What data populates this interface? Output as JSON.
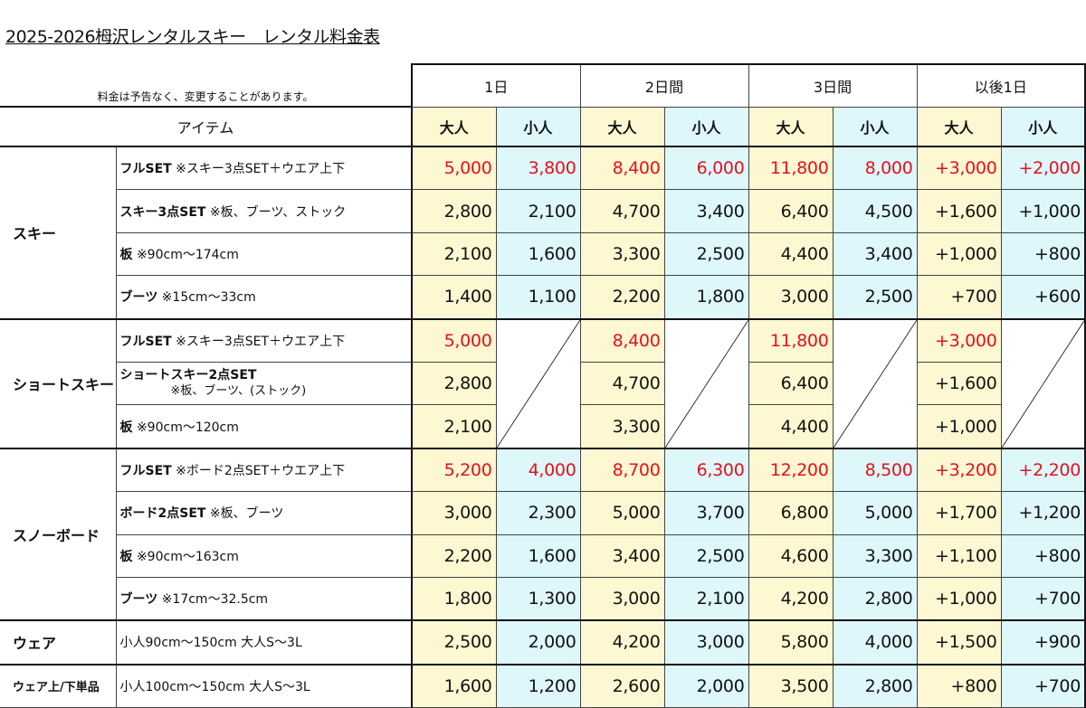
{
  "title": "2025-2026栂沢レンタルスキー　レンタル料金表",
  "note": "料金は予告なく、変更することがあります。",
  "item_header": "アイテム",
  "periods": [
    "1日",
    "2日間",
    "3日間",
    "以後1日"
  ],
  "adult_label": "大人",
  "child_label": "小人",
  "colors": {
    "adult_bg": "#fdf8d2",
    "child_bg": "#ddf7fb",
    "highlight": "#e8101a"
  },
  "groups": [
    {
      "category": "スキー",
      "rows": [
        {
          "label": "フルSET",
          "note": " ※スキー3点SET＋ウエア上下",
          "highlight": true,
          "prices": [
            "5,000",
            "3,800",
            "8,400",
            "6,000",
            "11,800",
            "8,000",
            "+3,000",
            "+2,000"
          ]
        },
        {
          "label": "スキー3点SET",
          "note": " ※板、ブーツ、ストック",
          "highlight": false,
          "prices": [
            "2,800",
            "2,100",
            "4,700",
            "3,400",
            "6,400",
            "4,500",
            "+1,600",
            "+1,000"
          ]
        },
        {
          "label": "板",
          "note": " ※90cm～174cm",
          "highlight": false,
          "prices": [
            "2,100",
            "1,600",
            "3,300",
            "2,500",
            "4,400",
            "3,400",
            "+1,000",
            "+800"
          ]
        },
        {
          "label": "ブーツ",
          "note": " ※15cm～33cm",
          "highlight": false,
          "prices": [
            "1,400",
            "1,100",
            "2,200",
            "1,800",
            "3,000",
            "2,500",
            "+700",
            "+600"
          ]
        }
      ]
    },
    {
      "category": "ショートスキー",
      "no_child": true,
      "rows": [
        {
          "label": "フルSET",
          "note": " ※スキー3点SET＋ウエア上下",
          "highlight": true,
          "prices": [
            "5,000",
            null,
            "8,400",
            null,
            "11,800",
            null,
            "+3,000",
            null
          ]
        },
        {
          "label": "ショートスキー2点SET",
          "sub": "※板、ブーツ、(ストック)",
          "highlight": false,
          "prices": [
            "2,800",
            null,
            "4,700",
            null,
            "6,400",
            null,
            "+1,600",
            null
          ]
        },
        {
          "label": "板",
          "note": " ※90cm～120cm",
          "highlight": false,
          "prices": [
            "2,100",
            null,
            "3,300",
            null,
            "4,400",
            null,
            "+1,000",
            null
          ]
        }
      ]
    },
    {
      "category": "スノーボード",
      "rows": [
        {
          "label": "フルSET",
          "note": " ※ボード2点SET＋ウエア上下",
          "highlight": true,
          "prices": [
            "5,200",
            "4,000",
            "8,700",
            "6,300",
            "12,200",
            "8,500",
            "+3,200",
            "+2,200"
          ]
        },
        {
          "label": "ボード2点SET",
          "note": " ※板、ブーツ",
          "highlight": false,
          "prices": [
            "3,000",
            "2,300",
            "5,000",
            "3,700",
            "6,800",
            "5,000",
            "+1,700",
            "+1,200"
          ]
        },
        {
          "label": "板",
          "note": " ※90cm～163cm",
          "highlight": false,
          "prices": [
            "2,200",
            "1,600",
            "3,400",
            "2,500",
            "4,600",
            "3,300",
            "+1,100",
            "+800"
          ]
        },
        {
          "label": "ブーツ",
          "note": " ※17cm～32.5cm",
          "highlight": false,
          "prices": [
            "1,800",
            "1,300",
            "3,000",
            "2,100",
            "4,200",
            "2,800",
            "+1,000",
            "+700"
          ]
        }
      ]
    },
    {
      "category": "ウェア",
      "rows": [
        {
          "label": "",
          "note": "小人90cm～150cm 大人S～3L",
          "highlight": false,
          "prices": [
            "2,500",
            "2,000",
            "4,200",
            "3,000",
            "5,800",
            "4,000",
            "+1,500",
            "+900"
          ]
        }
      ]
    },
    {
      "category": "ウェア上/下単品",
      "small": true,
      "rows": [
        {
          "label": "",
          "note": "小人100cm～150cm 大人S～3L",
          "highlight": false,
          "prices": [
            "1,600",
            "1,200",
            "2,600",
            "2,000",
            "3,500",
            "2,800",
            "+800",
            "+700"
          ]
        }
      ]
    }
  ]
}
